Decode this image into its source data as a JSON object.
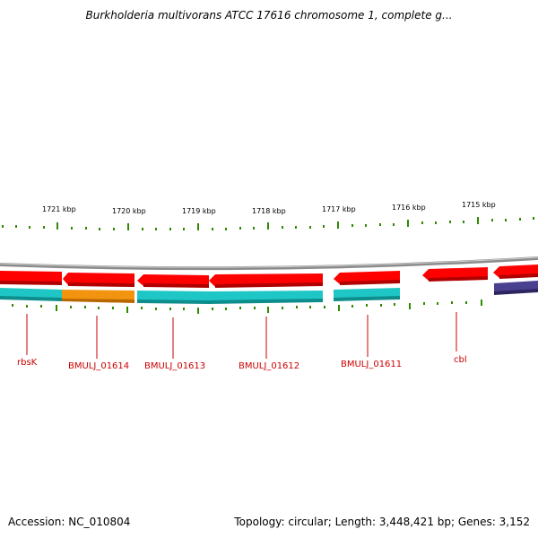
{
  "title": "Burkholderia multivorans ATCC 17616 chromosome 1, complete g...",
  "footer": {
    "accession": "Accession: NC_010804",
    "summary": "Topology: circular; Length: 3,448,421 bp; Genes: 3,152"
  },
  "ticks": [
    {
      "label": "1721 kbp"
    },
    {
      "label": "1720 kbp"
    },
    {
      "label": "1719 kbp"
    },
    {
      "label": "1718 kbp"
    },
    {
      "label": "1717 kbp"
    },
    {
      "label": "1716 kbp"
    },
    {
      "label": "1715 kbp"
    }
  ],
  "gene_labels": [
    {
      "name": "rbsK"
    },
    {
      "name": "BMULJ_01614"
    },
    {
      "name": "BMULJ_01613"
    },
    {
      "name": "BMULJ_01612"
    },
    {
      "name": "BMULJ_01611"
    },
    {
      "name": "cbl"
    }
  ],
  "colors": {
    "gene": "#ff0000",
    "gene_dark": "#b00000",
    "cds_teal": "#1fc6c6",
    "cds_orange": "#f29410",
    "cds_purple": "#4a4090",
    "backbone": "#8c8c8c",
    "tick": "#2e8b00",
    "label": "#cc0000"
  }
}
